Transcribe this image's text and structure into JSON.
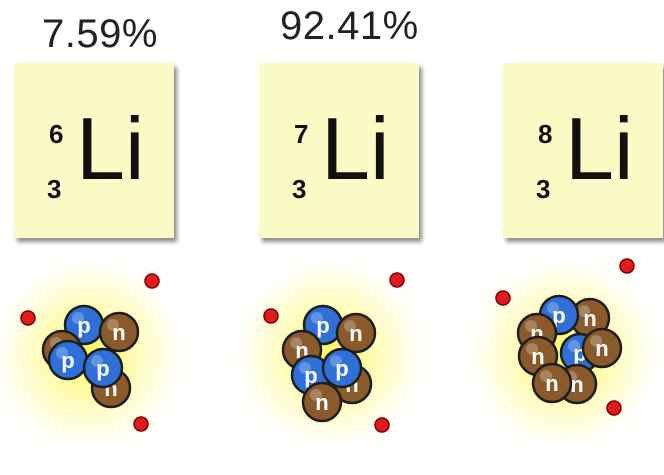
{
  "isotopes": [
    {
      "mass": "6",
      "atomic_number": "3",
      "symbol": "Li",
      "abundance": "7.59%"
    },
    {
      "mass": "7",
      "atomic_number": "3",
      "symbol": "Li",
      "abundance": "92.41%"
    },
    {
      "mass": "8",
      "atomic_number": "3",
      "symbol": "Li",
      "abundance": ""
    }
  ],
  "labels": {
    "proton": "p",
    "neutron": "n"
  },
  "colors": {
    "card": "#fbfbc6",
    "proton": "#2e6fd8",
    "neutron": "#8a5a2b",
    "electron": "#e01b1b",
    "glow": "#fff45a"
  }
}
